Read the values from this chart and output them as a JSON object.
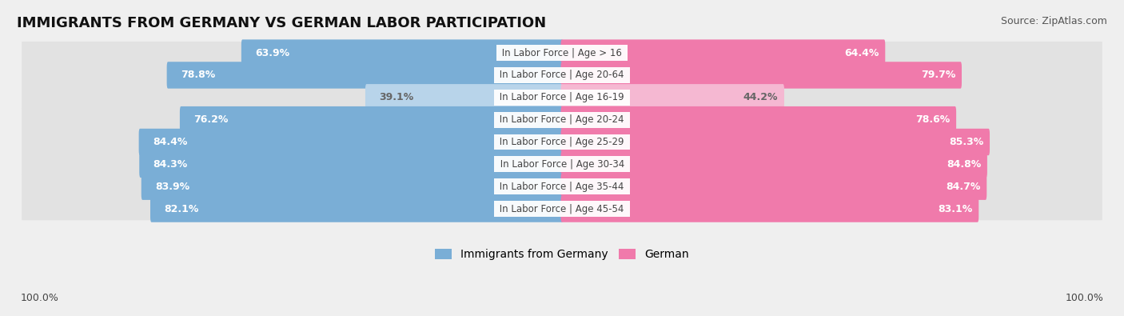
{
  "title": "IMMIGRANTS FROM GERMANY VS GERMAN LABOR PARTICIPATION",
  "source": "Source: ZipAtlas.com",
  "categories": [
    "In Labor Force | Age > 16",
    "In Labor Force | Age 20-64",
    "In Labor Force | Age 16-19",
    "In Labor Force | Age 20-24",
    "In Labor Force | Age 25-29",
    "In Labor Force | Age 30-34",
    "In Labor Force | Age 35-44",
    "In Labor Force | Age 45-54"
  ],
  "immigrants_values": [
    63.9,
    78.8,
    39.1,
    76.2,
    84.4,
    84.3,
    83.9,
    82.1
  ],
  "german_values": [
    64.4,
    79.7,
    44.2,
    78.6,
    85.3,
    84.8,
    84.7,
    83.1
  ],
  "immigrants_color": "#7aaed6",
  "immigrants_color_light": "#b8d4ea",
  "german_color": "#f07aab",
  "german_color_light": "#f5b8d2",
  "bar_height": 0.72,
  "background_color": "#efefef",
  "row_bg_color": "#e2e2e2",
  "axis_label_left": "100.0%",
  "axis_label_right": "100.0%",
  "legend_immigrants": "Immigrants from Germany",
  "legend_german": "German",
  "title_fontsize": 13,
  "source_fontsize": 9,
  "bar_label_fontsize": 9,
  "category_label_fontsize": 8.5,
  "legend_fontsize": 10
}
